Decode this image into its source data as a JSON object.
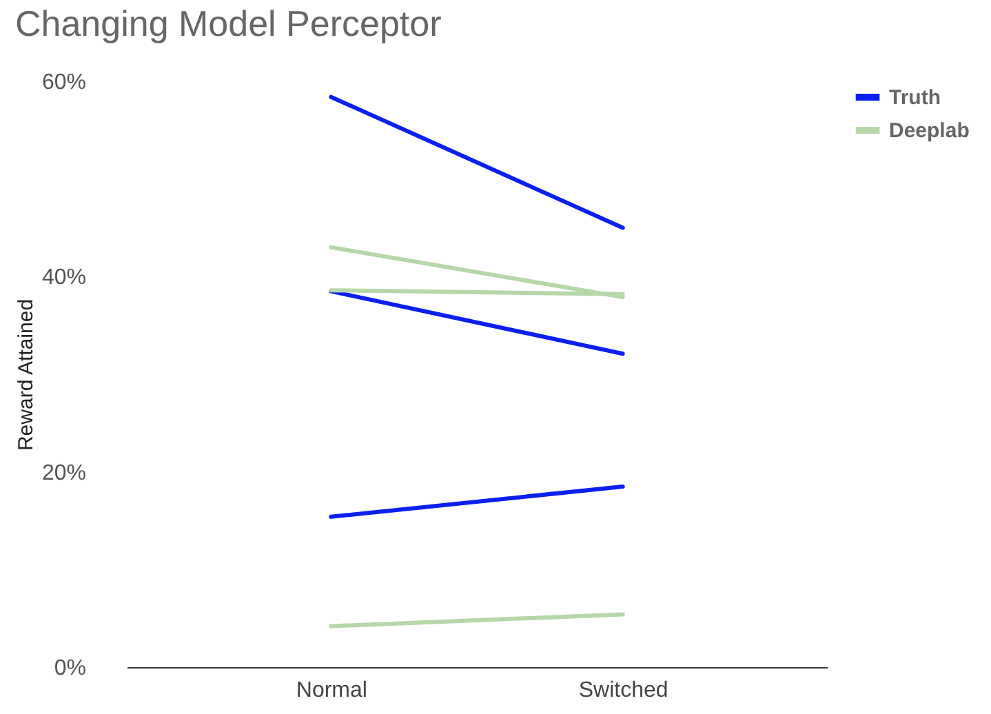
{
  "chart_data": {
    "type": "line",
    "title": "Changing Model Perceptor",
    "ylabel": "Reward Attained",
    "categories": [
      "Normal",
      "Switched"
    ],
    "series": [
      {
        "name": "Truth",
        "color": "#0a1ff0",
        "values": [
          58.4,
          45.0
        ]
      },
      {
        "color": "#0a1ff0",
        "values": [
          38.5,
          32.1
        ]
      },
      {
        "color": "#0a1ff0",
        "values": [
          15.4,
          18.5
        ]
      },
      {
        "name": "Deeplab",
        "color": "#b6d7a8",
        "values": [
          43.0,
          37.9
        ]
      },
      {
        "color": "#b6d7a8",
        "values": [
          38.6,
          38.2
        ]
      },
      {
        "color": "#b6d7a8",
        "values": [
          4.2,
          5.4
        ]
      }
    ],
    "ylim": [
      0,
      60
    ],
    "yticks": [
      {
        "value": 0,
        "label": "0%"
      },
      {
        "value": 20,
        "label": "20%"
      },
      {
        "value": 40,
        "label": "40%"
      },
      {
        "value": 60,
        "label": "60%"
      }
    ],
    "grid": false,
    "legend": "top right",
    "marker": "none",
    "line_style": "solid"
  }
}
